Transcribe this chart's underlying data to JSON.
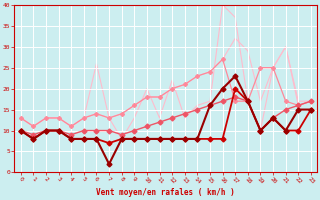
{
  "xlabel": "Vent moyen/en rafales ( km/h )",
  "background_color": "#cceef0",
  "grid_color": "#ffffff",
  "xlim": [
    -0.5,
    23.5
  ],
  "ylim": [
    0,
    40
  ],
  "xticks": [
    0,
    1,
    2,
    3,
    4,
    5,
    6,
    7,
    8,
    9,
    10,
    11,
    12,
    13,
    14,
    15,
    16,
    17,
    18,
    19,
    20,
    21,
    22,
    23
  ],
  "yticks": [
    0,
    5,
    10,
    15,
    20,
    25,
    30,
    35,
    40
  ],
  "lines": [
    {
      "x": [
        0,
        1,
        2,
        3,
        4,
        5,
        6,
        7,
        8,
        9,
        10,
        11,
        12,
        13,
        14,
        15,
        16,
        17,
        18,
        19,
        20,
        21,
        22,
        23
      ],
      "y": [
        13,
        11,
        13,
        13,
        11,
        13,
        14,
        13,
        14,
        16,
        18,
        18,
        20,
        21,
        23,
        24,
        27,
        32,
        29,
        17,
        25,
        30,
        17,
        17
      ],
      "color": "#ffbbcc",
      "linewidth": 0.8,
      "marker": null,
      "markersize": 0,
      "zorder": 1
    },
    {
      "x": [
        0,
        1,
        2,
        3,
        4,
        5,
        6,
        7,
        8,
        9,
        10,
        11,
        12,
        13,
        14,
        15,
        16,
        17,
        18,
        19,
        20,
        21,
        22,
        23
      ],
      "y": [
        13,
        11,
        13,
        13,
        11,
        13,
        26,
        13,
        8,
        13,
        20,
        13,
        22,
        13,
        16,
        17,
        40,
        37,
        17,
        10,
        25,
        30,
        16,
        17
      ],
      "color": "#ffbbcc",
      "linewidth": 0.8,
      "marker": null,
      "markersize": 0,
      "zorder": 1
    },
    {
      "x": [
        0,
        1,
        2,
        3,
        4,
        5,
        6,
        7,
        8,
        9,
        10,
        11,
        12,
        13,
        14,
        15,
        16,
        17,
        18,
        19,
        20,
        21,
        22,
        23
      ],
      "y": [
        13,
        11,
        13,
        13,
        11,
        13,
        14,
        13,
        14,
        16,
        18,
        18,
        20,
        21,
        23,
        24,
        27,
        17,
        17,
        25,
        25,
        17,
        16,
        17
      ],
      "color": "#ff8899",
      "linewidth": 0.9,
      "marker": "P",
      "markersize": 2.5,
      "zorder": 3
    },
    {
      "x": [
        0,
        1,
        2,
        3,
        4,
        5,
        6,
        7,
        8,
        9,
        10,
        11,
        12,
        13,
        14,
        15,
        16,
        17,
        18,
        19,
        20,
        21,
        22,
        23
      ],
      "y": [
        10,
        9,
        10,
        10,
        9,
        10,
        10,
        10,
        9,
        10,
        11,
        12,
        13,
        14,
        15,
        16,
        17,
        18,
        17,
        10,
        13,
        15,
        16,
        17
      ],
      "color": "#ee5566",
      "linewidth": 1.0,
      "marker": "D",
      "markersize": 2.5,
      "zorder": 4
    },
    {
      "x": [
        0,
        1,
        2,
        3,
        4,
        5,
        6,
        7,
        8,
        9,
        10,
        11,
        12,
        13,
        14,
        15,
        16,
        17,
        18,
        19,
        20,
        21,
        22,
        23
      ],
      "y": [
        10,
        8,
        10,
        10,
        8,
        8,
        8,
        7,
        8,
        8,
        8,
        8,
        8,
        8,
        8,
        8,
        8,
        20,
        17,
        10,
        13,
        10,
        10,
        15
      ],
      "color": "#cc0000",
      "linewidth": 1.3,
      "marker": "D",
      "markersize": 2.5,
      "zorder": 6
    },
    {
      "x": [
        0,
        1,
        2,
        3,
        4,
        5,
        6,
        7,
        8,
        9,
        10,
        11,
        12,
        13,
        14,
        15,
        16,
        17,
        18,
        19,
        20,
        21,
        22,
        23
      ],
      "y": [
        10,
        8,
        10,
        10,
        8,
        8,
        8,
        2,
        8,
        8,
        8,
        8,
        8,
        8,
        8,
        16,
        20,
        23,
        17,
        10,
        13,
        10,
        15,
        15
      ],
      "color": "#990000",
      "linewidth": 1.5,
      "marker": "D",
      "markersize": 2.5,
      "zorder": 7
    }
  ]
}
